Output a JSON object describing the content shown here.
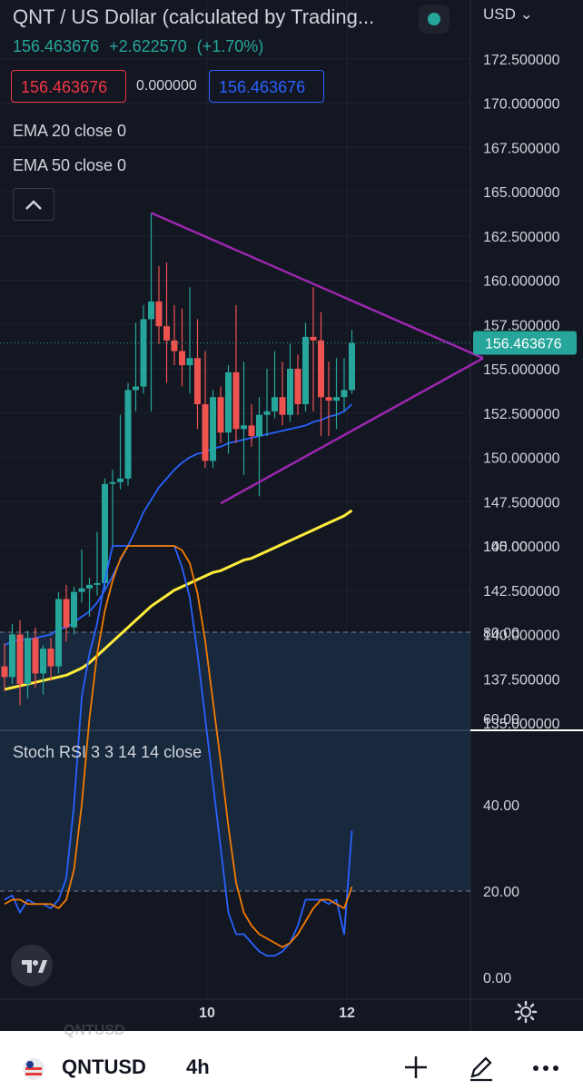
{
  "header": {
    "title": "QNT / US Dollar (calculated by Trading...",
    "last_price": "156.463676",
    "change": "+2.622570",
    "change_pct": "(+1.70%)",
    "bid": "156.463676",
    "spread": "0.000000",
    "ask": "156.463676",
    "indicators": [
      "EMA 20 close 0",
      "EMA 50 close 0"
    ]
  },
  "currency": "USD",
  "price_tag": "156.463676",
  "stoch_label": "Stoch RSI 3 3 14 14 close",
  "bottom_bar": {
    "symbol": "QNTUSD",
    "timeframe": "4h",
    "ghost_symbol": "QNTUSD"
  },
  "colors": {
    "up": "#26a69a",
    "down": "#ef5350",
    "ema20": "#2962ff",
    "ema50": "#ffeb3b",
    "triangle": "#9c27b0",
    "stoch_k": "#2962ff",
    "stoch_d": "#f57c00",
    "bg": "#131722"
  },
  "icons": [
    "chevron-up-icon",
    "live-dot-icon",
    "gear-icon",
    "plus-icon",
    "pencil-icon",
    "more-icon",
    "tradingview-logo-icon",
    "flag-icon"
  ],
  "chart_data": [
    {
      "type": "candlestick",
      "title": "QNT / US Dollar",
      "price_axis_ticks": [
        "172.500000",
        "170.000000",
        "167.500000",
        "165.000000",
        "162.500000",
        "160.000000",
        "157.500000",
        "155.000000",
        "152.500000",
        "150.000000",
        "147.500000",
        "145.000000",
        "142.500000",
        "140.000000",
        "137.500000",
        "135.000000"
      ],
      "time_axis_ticks": [
        "10",
        "12"
      ],
      "ylim": [
        135,
        173
      ],
      "last_price": 156.46,
      "candles": [
        {
          "o": 138.2,
          "h": 139.5,
          "l": 136.8,
          "c": 137.6
        },
        {
          "o": 137.6,
          "h": 140.6,
          "l": 137.2,
          "c": 140.0
        },
        {
          "o": 140.0,
          "h": 140.8,
          "l": 136.0,
          "c": 137.2
        },
        {
          "o": 137.2,
          "h": 140.2,
          "l": 136.4,
          "c": 139.8
        },
        {
          "o": 139.8,
          "h": 140.4,
          "l": 137.0,
          "c": 137.8
        },
        {
          "o": 137.8,
          "h": 139.4,
          "l": 136.6,
          "c": 139.2
        },
        {
          "o": 139.2,
          "h": 139.8,
          "l": 137.4,
          "c": 138.2
        },
        {
          "o": 138.2,
          "h": 142.4,
          "l": 137.8,
          "c": 142.0
        },
        {
          "o": 142.0,
          "h": 142.8,
          "l": 139.6,
          "c": 140.4
        },
        {
          "o": 140.4,
          "h": 142.7,
          "l": 140.0,
          "c": 142.4
        },
        {
          "o": 142.4,
          "h": 144.8,
          "l": 141.8,
          "c": 142.6
        },
        {
          "o": 142.6,
          "h": 143.2,
          "l": 141.0,
          "c": 142.8
        },
        {
          "o": 142.8,
          "h": 145.8,
          "l": 142.2,
          "c": 142.9
        },
        {
          "o": 142.9,
          "h": 148.8,
          "l": 142.6,
          "c": 148.5
        },
        {
          "o": 148.5,
          "h": 149.3,
          "l": 145.0,
          "c": 148.6
        },
        {
          "o": 148.6,
          "h": 152.4,
          "l": 148.2,
          "c": 148.8
        },
        {
          "o": 148.8,
          "h": 154.2,
          "l": 148.4,
          "c": 153.8
        },
        {
          "o": 153.8,
          "h": 157.6,
          "l": 152.6,
          "c": 154.0
        },
        {
          "o": 154.0,
          "h": 158.6,
          "l": 153.6,
          "c": 157.8
        },
        {
          "o": 157.8,
          "h": 163.8,
          "l": 152.6,
          "c": 158.8
        },
        {
          "o": 158.8,
          "h": 160.8,
          "l": 156.4,
          "c": 157.4
        },
        {
          "o": 157.4,
          "h": 161.0,
          "l": 154.2,
          "c": 156.6
        },
        {
          "o": 156.6,
          "h": 158.6,
          "l": 155.2,
          "c": 156.0
        },
        {
          "o": 156.0,
          "h": 158.4,
          "l": 154.0,
          "c": 155.2
        },
        {
          "o": 155.2,
          "h": 159.6,
          "l": 153.6,
          "c": 155.6
        },
        {
          "o": 155.6,
          "h": 157.8,
          "l": 151.6,
          "c": 153.0
        },
        {
          "o": 153.0,
          "h": 156.0,
          "l": 149.4,
          "c": 149.8
        },
        {
          "o": 149.8,
          "h": 153.8,
          "l": 149.4,
          "c": 153.4
        },
        {
          "o": 153.4,
          "h": 154.0,
          "l": 150.8,
          "c": 151.4
        },
        {
          "o": 151.4,
          "h": 155.2,
          "l": 150.2,
          "c": 154.8
        },
        {
          "o": 154.8,
          "h": 158.6,
          "l": 150.8,
          "c": 151.6
        },
        {
          "o": 151.6,
          "h": 155.4,
          "l": 149.0,
          "c": 151.8
        },
        {
          "o": 151.8,
          "h": 153.0,
          "l": 150.6,
          "c": 151.2
        },
        {
          "o": 151.2,
          "h": 153.4,
          "l": 147.8,
          "c": 152.4
        },
        {
          "o": 152.4,
          "h": 155.0,
          "l": 151.2,
          "c": 152.6
        },
        {
          "o": 152.6,
          "h": 156.0,
          "l": 152.2,
          "c": 153.4
        },
        {
          "o": 153.4,
          "h": 155.4,
          "l": 151.8,
          "c": 152.4
        },
        {
          "o": 152.4,
          "h": 156.4,
          "l": 152.0,
          "c": 155.0
        },
        {
          "o": 155.0,
          "h": 155.8,
          "l": 152.4,
          "c": 153.0
        },
        {
          "o": 153.0,
          "h": 157.6,
          "l": 152.6,
          "c": 156.8
        },
        {
          "o": 156.8,
          "h": 159.6,
          "l": 152.6,
          "c": 156.6
        },
        {
          "o": 156.6,
          "h": 158.2,
          "l": 151.2,
          "c": 153.4
        },
        {
          "o": 153.4,
          "h": 155.4,
          "l": 151.2,
          "c": 153.2
        },
        {
          "o": 153.2,
          "h": 155.6,
          "l": 151.6,
          "c": 153.4
        },
        {
          "o": 153.4,
          "h": 155.6,
          "l": 152.6,
          "c": 153.8
        },
        {
          "o": 153.8,
          "h": 157.2,
          "l": 153.6,
          "c": 156.46
        }
      ],
      "ema20": [
        139.4,
        139.6,
        139.7,
        139.7,
        139.8,
        139.9,
        140.0,
        140.3,
        140.4,
        140.7,
        141.0,
        141.3,
        141.8,
        142.5,
        143.3,
        144.2,
        145.0,
        145.9,
        146.9,
        147.6,
        148.3,
        148.8,
        149.3,
        149.7,
        150.0,
        150.2,
        150.3,
        150.5,
        150.6,
        150.8,
        150.9,
        151.0,
        151.1,
        151.2,
        151.3,
        151.4,
        151.5,
        151.6,
        151.7,
        151.8,
        152.0,
        152.1,
        152.3,
        152.4,
        152.6,
        153.0
      ],
      "ema50": [
        136.9,
        137.0,
        137.1,
        137.2,
        137.3,
        137.4,
        137.5,
        137.6,
        137.7,
        137.9,
        138.1,
        138.4,
        138.8,
        139.2,
        139.6,
        140.0,
        140.4,
        140.8,
        141.2,
        141.6,
        141.9,
        142.2,
        142.5,
        142.7,
        142.9,
        143.1,
        143.3,
        143.5,
        143.6,
        143.8,
        144.0,
        144.2,
        144.3,
        144.5,
        144.7,
        144.9,
        145.1,
        145.3,
        145.5,
        145.7,
        145.9,
        146.1,
        146.3,
        146.5,
        146.7,
        147.0
      ],
      "trendlines": [
        {
          "from_candle": 19,
          "from_price": 163.8,
          "to_candle": 62,
          "to_price": 155.6
        },
        {
          "from_candle": 28,
          "from_price": 147.4,
          "to_candle": 62,
          "to_price": 155.6
        }
      ]
    },
    {
      "type": "line",
      "title": "Stoch RSI 3 3 14 14 close",
      "ylim": [
        0,
        100
      ],
      "y_ticks": [
        "100.00",
        "80.00",
        "60.00",
        "40.00",
        "20.00",
        "0.00"
      ],
      "band": [
        20,
        80
      ],
      "series": [
        {
          "name": "K",
          "values": [
            18,
            19,
            15,
            18,
            17,
            17,
            16,
            18,
            23,
            40,
            65,
            75,
            82,
            92,
            100,
            100,
            100,
            100,
            100,
            100,
            100,
            100,
            100,
            95,
            88,
            75,
            60,
            45,
            30,
            15,
            10,
            10,
            8,
            6,
            5,
            5,
            6,
            8,
            12,
            18,
            18,
            18,
            17,
            18,
            10,
            34
          ]
        },
        {
          "name": "D",
          "values": [
            17,
            18,
            18,
            17,
            17,
            17,
            17,
            16,
            18,
            25,
            40,
            60,
            75,
            85,
            92,
            97,
            100,
            100,
            100,
            100,
            100,
            100,
            100,
            99,
            96,
            89,
            78,
            64,
            50,
            35,
            22,
            15,
            12,
            10,
            9,
            8,
            7,
            8,
            10,
            13,
            16,
            18,
            18,
            17,
            16,
            21
          ]
        }
      ]
    }
  ]
}
